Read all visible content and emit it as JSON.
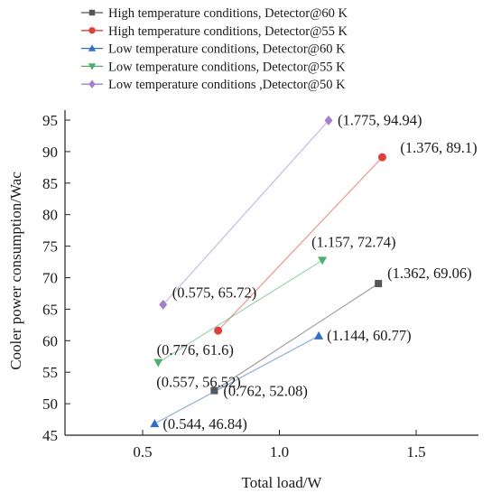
{
  "chart_data": {
    "type": "scatter",
    "xlabel": "Total load/W",
    "ylabel": "Cooler power consumption/Wac",
    "xlim": [
      0.25,
      1.7
    ],
    "ylim": [
      45,
      97
    ],
    "x_ticks": [
      0.5,
      1.0,
      1.5
    ],
    "x_tick_labels": [
      "0.5",
      "1.0",
      "1.5"
    ],
    "y_ticks": [
      45,
      50,
      55,
      60,
      65,
      70,
      75,
      80,
      85,
      90,
      95
    ],
    "y_tick_labels": [
      "45",
      "50",
      "55",
      "60",
      "65",
      "70",
      "75",
      "80",
      "85",
      "90",
      "95"
    ],
    "grid": false,
    "legend_position": "top-left",
    "series": [
      {
        "name": "High temperature conditions, Detector@60 K",
        "color": "#555555",
        "marker": "square",
        "points": [
          {
            "x": 0.762,
            "y": 52.08,
            "label": "(0.762, 52.08)"
          },
          {
            "x": 1.362,
            "y": 69.06,
            "label": "(1.362, 69.06)"
          }
        ]
      },
      {
        "name": "High temperature conditions, Detector@55 K",
        "color": "#e0403a",
        "marker": "circle",
        "points": [
          {
            "x": 0.776,
            "y": 61.6,
            "label": "(0.776, 61.6)"
          },
          {
            "x": 1.376,
            "y": 89.1,
            "label": "(1.376, 89.1)"
          }
        ]
      },
      {
        "name": "Low temperature conditions, Detector@60 K",
        "color": "#2f6fc4",
        "marker": "triangle-up",
        "points": [
          {
            "x": 0.544,
            "y": 46.84,
            "label": "(0.544, 46.84)"
          },
          {
            "x": 1.144,
            "y": 60.77,
            "label": "(1.144, 60.77)"
          }
        ]
      },
      {
        "name": "Low temperature conditions, Detector@55 K",
        "color": "#4caf6e",
        "marker": "triangle-down",
        "points": [
          {
            "x": 0.557,
            "y": 56.52,
            "label": "(0.557, 56.52)"
          },
          {
            "x": 1.157,
            "y": 72.74,
            "label": "(1.157, 72.74)"
          }
        ]
      },
      {
        "name": "Low temperature conditions ,Detector@50 K",
        "color": "#a57fc9",
        "marker": "diamond",
        "points": [
          {
            "x": 0.575,
            "y": 65.72,
            "label": "(0.575, 65.72)"
          },
          {
            "x": 1.775,
            "y": 94.94,
            "label": "(1.775, 94.94)"
          }
        ]
      }
    ]
  }
}
